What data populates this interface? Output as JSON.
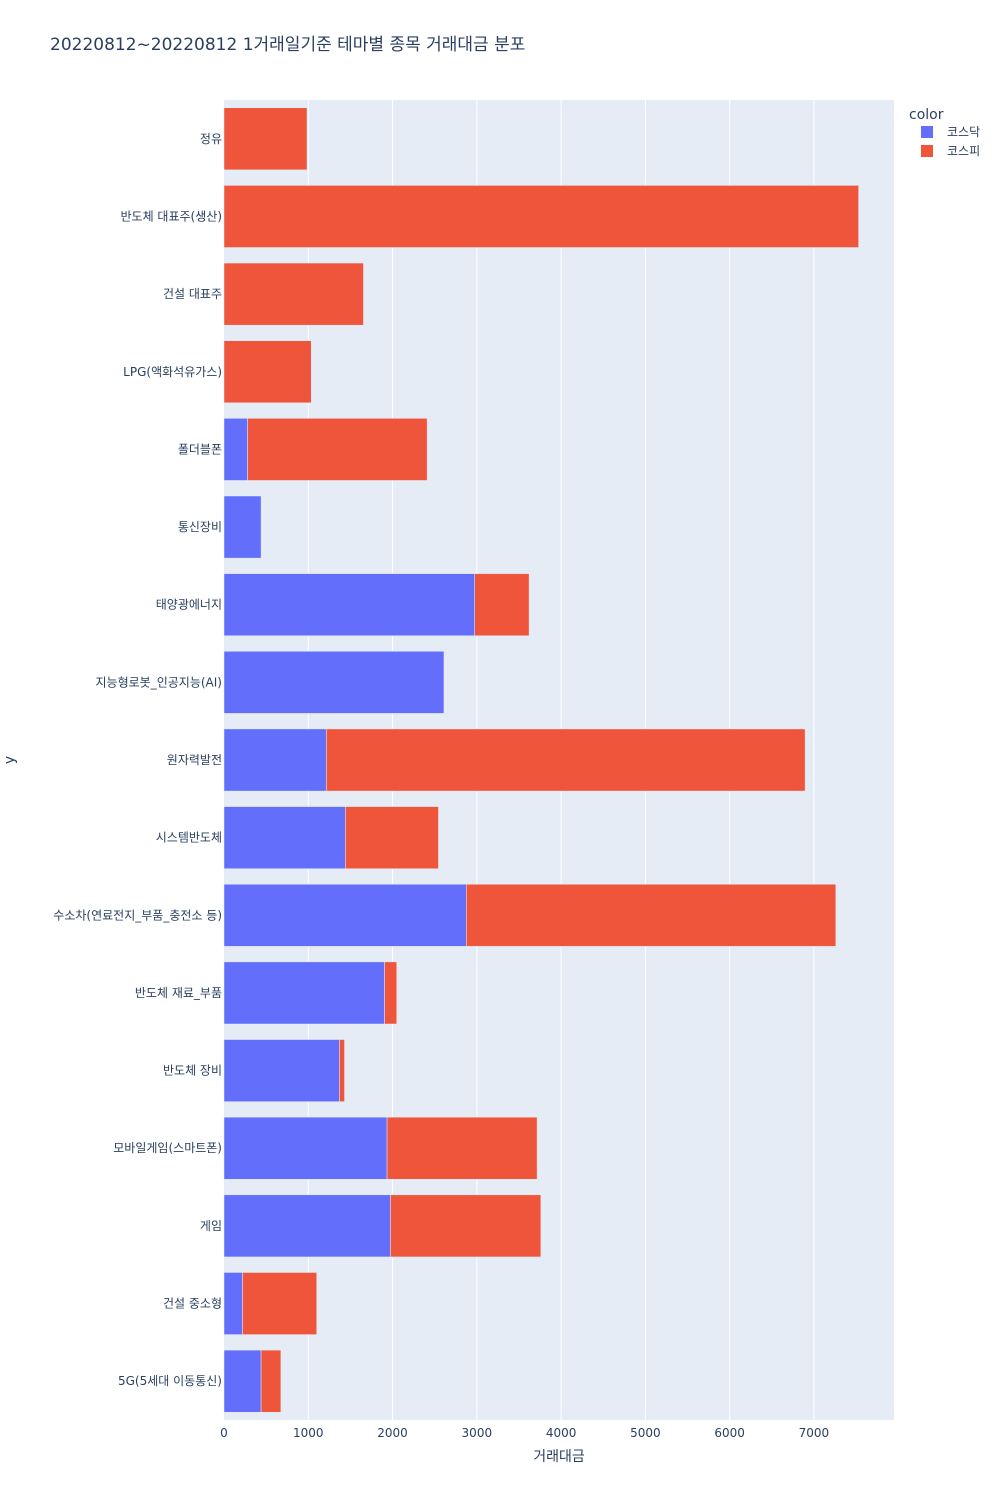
{
  "chart_data": {
    "type": "bar",
    "orientation": "horizontal",
    "barmode": "stack",
    "title": "20220812~20220812 1거래일기준 테마별 종목 거래대금 분포",
    "xlabel": "거래대금",
    "ylabel": "y",
    "xlim": [
      0,
      7950
    ],
    "xticks": [
      0,
      1000,
      2000,
      3000,
      4000,
      5000,
      6000,
      7000
    ],
    "xtick_labels": [
      "0",
      "1000",
      "2000",
      "3000",
      "4000",
      "5000",
      "6000",
      "7000"
    ],
    "grid": true,
    "legend_title": "color",
    "legend_position": "top-right",
    "categories": [
      "정유",
      "반도체 대표주(생산)",
      "건설 대표주",
      "LPG(액화석유가스)",
      "폴더블폰",
      "통신장비",
      "태양광에너지",
      "지능형로봇_인공지능(AI)",
      "원자력발전",
      "시스템반도체",
      "수소차(연료전지_부품_충전소 등)",
      "반도체 재료_부품",
      "반도체 장비",
      "모바일게임(스마트폰)",
      "게임",
      "건설 중소형",
      "5G(5세대 이동통신)"
    ],
    "series": [
      {
        "name": "코스닥",
        "color": "#636efa",
        "values": [
          0,
          0,
          0,
          0,
          280,
          440,
          2975,
          2610,
          1215,
          1440,
          2875,
          1905,
          1370,
          1935,
          1975,
          220,
          440
        ]
      },
      {
        "name": "코스피",
        "color": "#ef553b",
        "values": [
          985,
          7530,
          1655,
          1035,
          2130,
          0,
          645,
          0,
          5680,
          1105,
          4385,
          145,
          60,
          1780,
          1785,
          880,
          235
        ]
      }
    ]
  }
}
